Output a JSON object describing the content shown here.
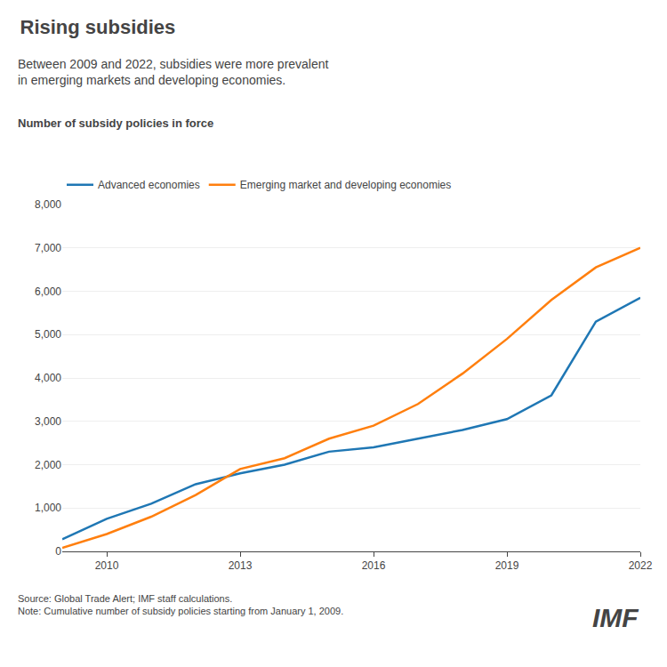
{
  "chart_data": {
    "type": "line",
    "title": "Rising subsidies",
    "subtitle": "Between 2009 and 2022, subsidies were more prevalent\nin emerging markets and developing economies.",
    "ylabel": "Number of subsidy policies in force",
    "annotations": [
      "Source: Global Trade Alert; IMF staff calculations.\nNote: Cumulative number of subsidy policies starting from January 1, 2009.",
      "IMF"
    ],
    "x": [
      2009,
      2010,
      2011,
      2012,
      2013,
      2014,
      2015,
      2016,
      2017,
      2018,
      2019,
      2020,
      2021,
      2022
    ],
    "series": [
      {
        "name": "Advanced economies",
        "values": [
          280,
          750,
          1100,
          1550,
          1800,
          2000,
          2300,
          2400,
          2600,
          2800,
          3050,
          3600,
          5300,
          5850
        ]
      },
      {
        "name": "Emerging market and developing economies",
        "values": [
          80,
          400,
          800,
          1300,
          1900,
          2150,
          2600,
          2900,
          3400,
          4100,
          4900,
          5800,
          6550,
          7000
        ]
      }
    ],
    "xlim": [
      2009,
      2022
    ],
    "xticks": [
      2010,
      2013,
      2016,
      2019,
      2022
    ],
    "ylim": [
      0,
      8000
    ],
    "yticks": [
      0,
      {
        "value": 1000,
        "label": "1,000"
      },
      {
        "value": 2000,
        "label": "2,000"
      },
      {
        "value": 3000,
        "label": "3,000"
      },
      {
        "value": 4000,
        "label": "4,000"
      },
      {
        "value": 5000,
        "label": "5,000"
      },
      {
        "value": 6000,
        "label": "6,000"
      },
      {
        "value": 7000,
        "label": "7,000"
      },
      {
        "value": 8000,
        "label": "8,000"
      }
    ],
    "grid": true,
    "legend": "top left"
  }
}
